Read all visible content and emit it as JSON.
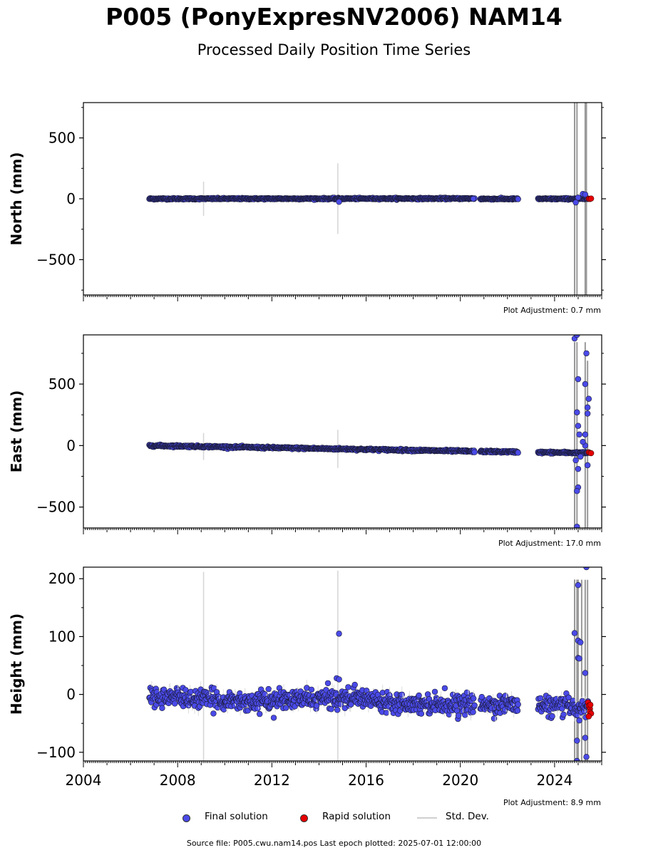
{
  "header": {
    "title": "P005 (PonyExpresNV2006) NAM14",
    "subtitle": "Processed Daily Position Time Series"
  },
  "legend": {
    "final": "Final solution",
    "rapid": "Rapid solution",
    "stddev": "Std. Dev."
  },
  "footer": {
    "text": "Source file: P005.cwu.nam14.pos  Last epoch plotted: 2025-07-01 12:00:00"
  },
  "colors": {
    "final": "#4a4ae8",
    "rapid": "#e60000",
    "stddev": "#c8c8c8",
    "edge": "#1a1a33"
  },
  "chart_data": [
    {
      "type": "scatter",
      "ylabel": "North (mm)",
      "adjustment": "Plot Adjustment: 0.7 mm",
      "ylim": [
        -790,
        790
      ],
      "yticks": [
        -500,
        0,
        500
      ],
      "ytick_labels": [
        "−500",
        "0",
        "500"
      ],
      "xlim": [
        2004.0,
        2026.0
      ],
      "trend": [
        [
          2006.8,
          0
        ],
        [
          2020.6,
          2
        ],
        [
          2020.85,
          -1
        ],
        [
          2022.45,
          -1
        ],
        [
          2023.3,
          -1
        ],
        [
          2025.5,
          0
        ]
      ],
      "scatter_sd": 3,
      "spikes": [
        [
          2009.1,
          140
        ],
        [
          2014.8,
          290
        ],
        [
          2024.85,
          790
        ],
        [
          2024.95,
          790
        ],
        [
          2025.3,
          790
        ],
        [
          2025.35,
          790
        ]
      ],
      "final_outliers": [
        [
          2014.85,
          -25
        ],
        [
          2024.9,
          -30
        ],
        [
          2025.0,
          10
        ],
        [
          2025.2,
          40
        ],
        [
          2025.3,
          35
        ],
        [
          2020.55,
          0
        ]
      ],
      "rapid": [
        [
          2025.45,
          0
        ],
        [
          2025.5,
          -2
        ],
        [
          2025.55,
          2
        ]
      ]
    },
    {
      "type": "scatter",
      "ylabel": "East (mm)",
      "adjustment": "Plot Adjustment: 17.0 mm",
      "ylim": [
        -670,
        900
      ],
      "yticks": [
        -500,
        0,
        500
      ],
      "ytick_labels": [
        "−500",
        "0",
        "500"
      ],
      "xlim": [
        2004.0,
        2026.0
      ],
      "trend": [
        [
          2006.8,
          0
        ],
        [
          2020.6,
          -47
        ],
        [
          2020.85,
          -48
        ],
        [
          2022.45,
          -52
        ],
        [
          2023.3,
          -55
        ],
        [
          2025.5,
          -60
        ]
      ],
      "scatter_sd": 4,
      "spikes": [
        [
          2009.1,
          110
        ],
        [
          2014.8,
          155
        ],
        [
          2024.85,
          900
        ],
        [
          2024.95,
          900
        ],
        [
          2025.3,
          900
        ],
        [
          2025.4,
          750
        ]
      ],
      "final_outliers": [
        [
          2024.85,
          870
        ],
        [
          2024.95,
          900
        ],
        [
          2025.0,
          540
        ],
        [
          2025.35,
          750
        ],
        [
          2025.3,
          500
        ],
        [
          2025.45,
          380
        ],
        [
          2025.4,
          310
        ],
        [
          2024.95,
          270
        ],
        [
          2025.4,
          260
        ],
        [
          2025.0,
          160
        ],
        [
          2025.3,
          90
        ],
        [
          2025.05,
          90
        ],
        [
          2024.9,
          -120
        ],
        [
          2025.0,
          -190
        ],
        [
          2025.0,
          -340
        ],
        [
          2024.95,
          -370
        ],
        [
          2025.4,
          -160
        ],
        [
          2025.3,
          0
        ],
        [
          2024.95,
          -660
        ],
        [
          2025.2,
          30
        ],
        [
          2025.1,
          -90
        ]
      ],
      "rapid": [
        [
          2025.45,
          -55
        ],
        [
          2025.5,
          -60
        ],
        [
          2025.55,
          -62
        ]
      ]
    },
    {
      "type": "scatter",
      "ylabel": "Height (mm)",
      "adjustment": "Plot Adjustment: 8.9 mm",
      "ylim": [
        -115,
        220
      ],
      "yticks": [
        -100,
        0,
        100,
        200
      ],
      "ytick_labels": [
        "−100",
        "0",
        "100",
        "200"
      ],
      "xlim": [
        2004.0,
        2026.0
      ],
      "xticks": [
        2004,
        2008,
        2012,
        2016,
        2020,
        2024
      ],
      "xtick_labels": [
        "2004",
        "2008",
        "2012",
        "2016",
        "2020",
        "2024"
      ],
      "trend": [
        [
          2006.8,
          -3
        ],
        [
          2009.0,
          -8
        ],
        [
          2011.0,
          -12
        ],
        [
          2013.5,
          -8
        ],
        [
          2015.5,
          -5
        ],
        [
          2016.5,
          -10
        ],
        [
          2018.0,
          -15
        ],
        [
          2020.6,
          -18
        ],
        [
          2020.85,
          -18
        ],
        [
          2022.45,
          -17
        ],
        [
          2023.3,
          -20
        ],
        [
          2025.5,
          -22
        ]
      ],
      "scatter_sd": 8,
      "spikes": [
        [
          2009.1,
          220
        ],
        [
          2014.8,
          220
        ],
        [
          2024.85,
          220
        ],
        [
          2024.95,
          220
        ],
        [
          2025.0,
          220
        ],
        [
          2025.15,
          220
        ],
        [
          2025.3,
          220
        ],
        [
          2025.4,
          220
        ]
      ],
      "final_outliers": [
        [
          2014.85,
          105
        ],
        [
          2014.75,
          28
        ],
        [
          2014.85,
          26
        ],
        [
          2024.85,
          106
        ],
        [
          2025.0,
          93
        ],
        [
          2025.1,
          90
        ],
        [
          2025.0,
          63
        ],
        [
          2025.05,
          62
        ],
        [
          2025.3,
          37
        ],
        [
          2025.0,
          189
        ],
        [
          2025.35,
          220
        ],
        [
          2024.95,
          -80
        ],
        [
          2025.05,
          -45
        ],
        [
          2025.35,
          -108
        ],
        [
          2024.95,
          -115
        ],
        [
          2025.3,
          -75
        ]
      ],
      "rapid": [
        [
          2025.42,
          -14
        ],
        [
          2025.45,
          -20
        ],
        [
          2025.5,
          -25
        ],
        [
          2025.5,
          -30
        ],
        [
          2025.55,
          -33
        ],
        [
          2025.45,
          -38
        ],
        [
          2025.52,
          -18
        ]
      ]
    }
  ]
}
